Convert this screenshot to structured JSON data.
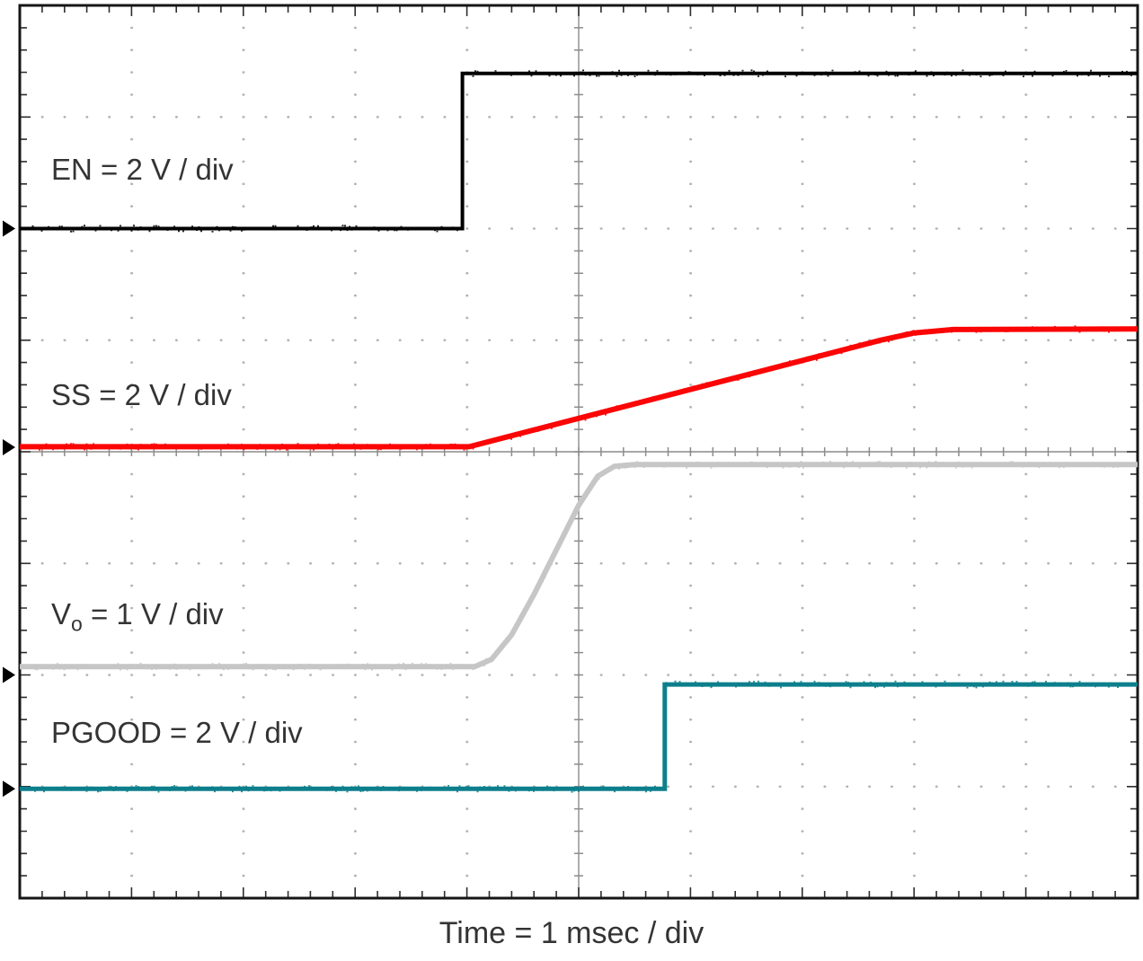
{
  "chart_data": {
    "type": "line",
    "title": "",
    "xlabel": "Time = 1 msec / div",
    "x_divisions": 10,
    "y_divisions": 8,
    "x_units_per_div": "1 msec",
    "background": "#ffffff",
    "grid": {
      "style": "dotted-divisions",
      "minor_per_div": 5,
      "center_crosshair": true,
      "dot_color": "#b3b3b3",
      "crosshair_color": "#8c8c8c",
      "border_color": "#161616",
      "tick_color": "#2f2f2f"
    },
    "series": [
      {
        "name": "EN",
        "label": "EN = 2 V / div",
        "volts_per_div": 2,
        "color": "#000000",
        "stroke_width": 4,
        "ground_marker_div": 2.0,
        "low_v": 0,
        "high_v_approx": 2.8,
        "points_div": [
          [
            0,
            2.0
          ],
          [
            3.96,
            2.0
          ],
          [
            3.96,
            0.61
          ],
          [
            10,
            0.61
          ]
        ]
      },
      {
        "name": "SS",
        "label": "SS = 2 V / div",
        "volts_per_div": 2,
        "color": "#fb0505",
        "stroke_width": 6,
        "ground_marker_div": 3.96,
        "low_v": 0,
        "high_v_approx": 2.1,
        "points_div": [
          [
            0,
            3.955
          ],
          [
            4.02,
            3.955
          ],
          [
            7.7,
            3.0
          ],
          [
            8.0,
            2.935
          ],
          [
            8.35,
            2.905
          ],
          [
            10,
            2.9
          ]
        ]
      },
      {
        "name": "Vo",
        "label_v": "V",
        "label_sub": "o",
        "label_rest": " = 1 V / div",
        "volts_per_div": 1,
        "color": "#c6c6c6",
        "stroke_width": 6,
        "ground_marker_div": 6.0,
        "low_v": 0,
        "high_v_approx": 1.8,
        "points_div": [
          [
            0,
            5.925
          ],
          [
            4.07,
            5.925
          ],
          [
            4.22,
            5.86
          ],
          [
            4.4,
            5.64
          ],
          [
            4.6,
            5.28
          ],
          [
            4.8,
            4.88
          ],
          [
            5.0,
            4.48
          ],
          [
            5.17,
            4.22
          ],
          [
            5.32,
            4.13
          ],
          [
            5.5,
            4.115
          ],
          [
            10,
            4.115
          ]
        ]
      },
      {
        "name": "PGOOD",
        "label": "PGOOD = 2 V / div",
        "volts_per_div": 2,
        "color": "#0d7f8c",
        "stroke_width": 5,
        "ground_marker_div": 7.02,
        "low_v": 0,
        "high_v_approx": 1.9,
        "points_div": [
          [
            0,
            7.02
          ],
          [
            5.77,
            7.02
          ],
          [
            5.77,
            6.085
          ],
          [
            10,
            6.085
          ]
        ]
      }
    ]
  }
}
